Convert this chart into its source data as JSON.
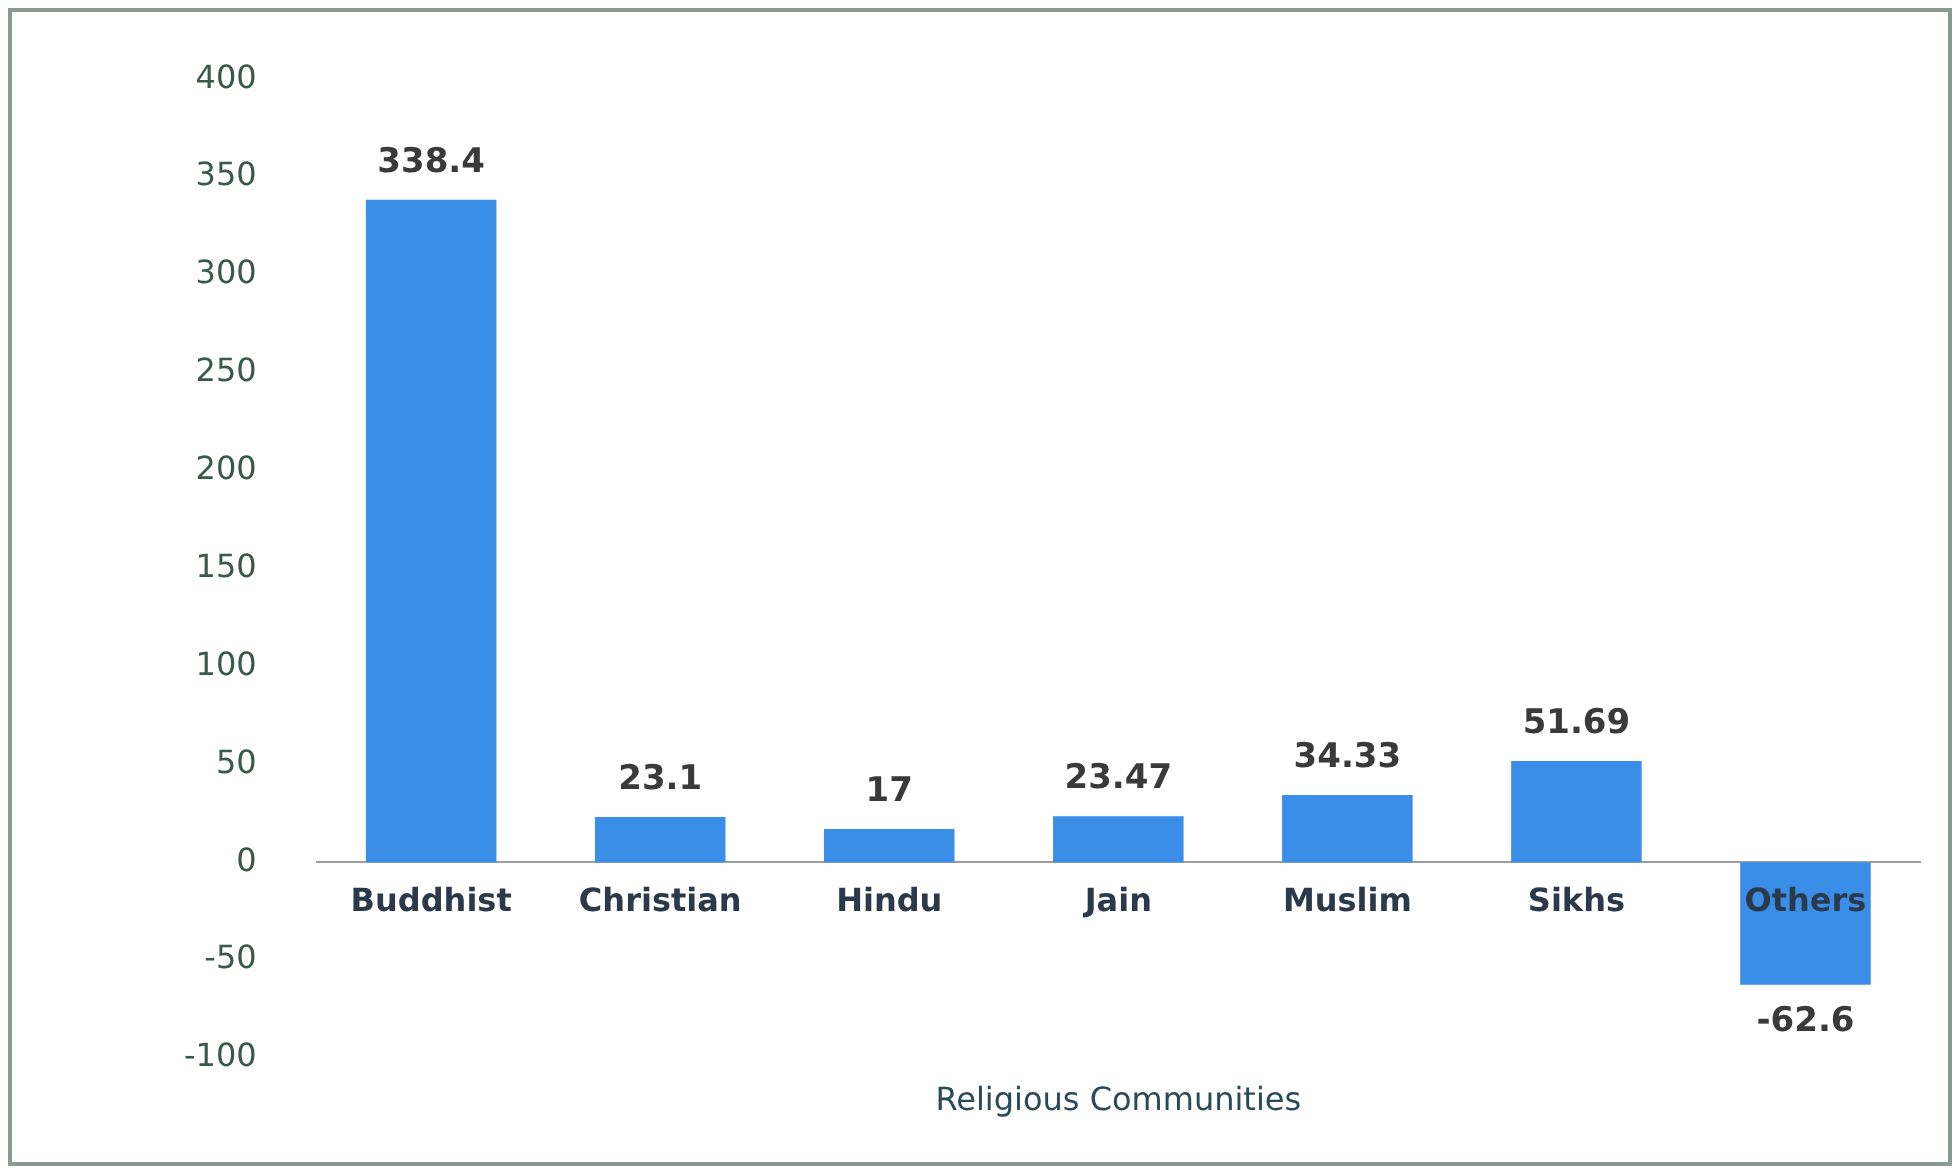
{
  "chart_data": {
    "type": "bar",
    "xlabel": "Religious Communities",
    "categories": [
      "Buddhist",
      "Christian",
      "Hindu",
      "Jain",
      "Muslim",
      "Sikhs",
      "Others"
    ],
    "values": [
      338.4,
      23.1,
      17,
      23.47,
      34.33,
      51.69,
      -62.6
    ],
    "color": "#3b8ee8",
    "ylim": [
      -100,
      400
    ],
    "yticks": [
      -100,
      -50,
      0,
      50,
      100,
      150,
      200,
      250,
      300,
      350,
      400
    ],
    "grid": false,
    "data_labels": true
  }
}
